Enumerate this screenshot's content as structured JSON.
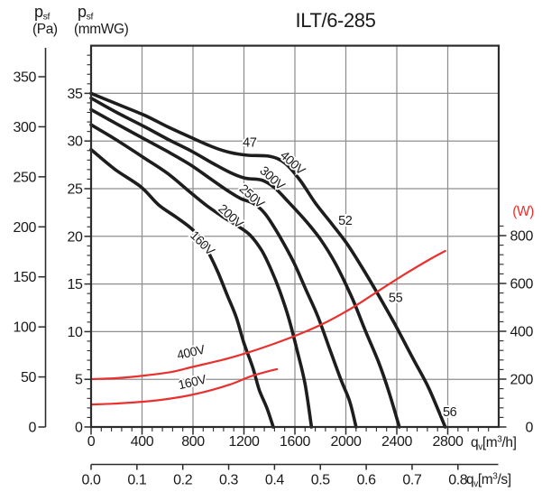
{
  "title": "ILT/6-285",
  "labels": {
    "p_main": "p",
    "p_sub": "sf",
    "pa_unit": "(Pa)",
    "mmwg_unit": "(mmWG)",
    "watt_unit": "(W)",
    "q_main": "q",
    "q_sub": "v",
    "bracket_m": "[m",
    "sup3": "3",
    "per_h": "/h]",
    "per_s": "/s]"
  },
  "colors": {
    "curve_black": "#1d1d1d",
    "curve_red": "#e8312e",
    "annotation_blue": "#5b7ec9",
    "grid": "#8f8f8f",
    "border": "#2c2c2c",
    "tick": "#2c2c2c",
    "text": "#1a1a1a"
  },
  "chart_data": {
    "type": "line",
    "title": "ILT/6-285",
    "x_axis_h": {
      "unit": "m3/h",
      "ticks": [
        0,
        400,
        800,
        1200,
        1600,
        2000,
        2400,
        2800
      ],
      "minor_step": 80,
      "max": 3200
    },
    "x_axis_s": {
      "unit": "m3/s",
      "ticks": [
        "0.0",
        "0.1",
        "0.2",
        "0.3",
        "0.4",
        "0.5",
        "0.6",
        "0.7",
        "0.8"
      ]
    },
    "y_axis_pa": {
      "unit": "Pa",
      "ticks": [
        350,
        300,
        250,
        200,
        150,
        100,
        50,
        0
      ],
      "max": 350
    },
    "y_axis_mmwg": {
      "unit": "mmWG",
      "ticks": [
        35,
        30,
        25,
        20,
        15,
        10,
        5,
        0
      ],
      "minor_step": 1,
      "max": 40
    },
    "y_axis_watt": {
      "unit": "W",
      "ticks": [
        800,
        600,
        400,
        200,
        0
      ],
      "minor_step": 40,
      "max": 840
    },
    "series": [
      {
        "name": "pressure-400V",
        "label": "400V",
        "color": "black",
        "y_axis": "mmWG",
        "label_at": {
          "q": 1560,
          "y": 27.4,
          "rot": 42
        },
        "points": [
          [
            0,
            35
          ],
          [
            200,
            33.9
          ],
          [
            420,
            32.7
          ],
          [
            600,
            31.5
          ],
          [
            780,
            30.4
          ],
          [
            950,
            29.4
          ],
          [
            1090,
            28.8
          ],
          [
            1230,
            28.5
          ],
          [
            1400,
            28.4
          ],
          [
            1520,
            27.7
          ],
          [
            1640,
            25.9
          ],
          [
            1760,
            23.5
          ],
          [
            1890,
            21.3
          ],
          [
            2010,
            19.2
          ],
          [
            2120,
            16.9
          ],
          [
            2240,
            14.2
          ],
          [
            2380,
            10.9
          ],
          [
            2530,
            7.1
          ],
          [
            2650,
            4.1
          ],
          [
            2780,
            0
          ]
        ]
      },
      {
        "name": "pressure-300V",
        "label": "300V",
        "color": "black",
        "y_axis": "mmWG",
        "label_at": {
          "q": 1400,
          "y": 25.8,
          "rot": 42
        },
        "points": [
          [
            0,
            34.5
          ],
          [
            200,
            33
          ],
          [
            420,
            31.5
          ],
          [
            600,
            30.2
          ],
          [
            780,
            29
          ],
          [
            950,
            27.7
          ],
          [
            1090,
            26.7
          ],
          [
            1210,
            26.1
          ],
          [
            1340,
            25.9
          ],
          [
            1440,
            25.1
          ],
          [
            1550,
            23.6
          ],
          [
            1680,
            21.7
          ],
          [
            1800,
            19.7
          ],
          [
            1920,
            17.1
          ],
          [
            2050,
            13.5
          ],
          [
            2150,
            10.2
          ],
          [
            2260,
            6.7
          ],
          [
            2340,
            3.6
          ],
          [
            2420,
            0
          ]
        ]
      },
      {
        "name": "pressure-250V",
        "label": "250V",
        "color": "black",
        "y_axis": "mmWG",
        "label_at": {
          "q": 1240,
          "y": 23.9,
          "rot": 42
        },
        "points": [
          [
            0,
            33.3
          ],
          [
            200,
            31.8
          ],
          [
            420,
            30.2
          ],
          [
            600,
            28.9
          ],
          [
            780,
            27.5
          ],
          [
            930,
            26.1
          ],
          [
            1060,
            24.9
          ],
          [
            1170,
            24
          ],
          [
            1280,
            23.4
          ],
          [
            1370,
            22.3
          ],
          [
            1480,
            20
          ],
          [
            1590,
            17.3
          ],
          [
            1690,
            14.3
          ],
          [
            1780,
            11.6
          ],
          [
            1870,
            8.3
          ],
          [
            1960,
            5
          ],
          [
            2030,
            2.7
          ],
          [
            2080,
            0
          ]
        ]
      },
      {
        "name": "pressure-200V",
        "label": "200V",
        "color": "black",
        "y_axis": "mmWG",
        "label_at": {
          "q": 1075,
          "y": 21.8,
          "rot": 42
        },
        "points": [
          [
            0,
            31.7
          ],
          [
            200,
            30.1
          ],
          [
            420,
            28.2
          ],
          [
            600,
            26.6
          ],
          [
            780,
            24.6
          ],
          [
            910,
            23.2
          ],
          [
            1040,
            22
          ],
          [
            1150,
            21.1
          ],
          [
            1250,
            20.1
          ],
          [
            1340,
            18.5
          ],
          [
            1410,
            16.6
          ],
          [
            1480,
            14.3
          ],
          [
            1550,
            11.5
          ],
          [
            1620,
            7.9
          ],
          [
            1680,
            4.5
          ],
          [
            1730,
            0
          ]
        ]
      },
      {
        "name": "pressure-160V",
        "label": "160V",
        "color": "black",
        "y_axis": "mmWG",
        "label_at": {
          "q": 850,
          "y": 19.0,
          "rot": 45
        },
        "points": [
          [
            0,
            29.1
          ],
          [
            190,
            27
          ],
          [
            390,
            25.2
          ],
          [
            530,
            23.3
          ],
          [
            670,
            22
          ],
          [
            780,
            20.9
          ],
          [
            860,
            19.8
          ],
          [
            930,
            18.1
          ],
          [
            1000,
            16.1
          ],
          [
            1070,
            13.8
          ],
          [
            1140,
            11.5
          ],
          [
            1200,
            8.8
          ],
          [
            1270,
            6.2
          ],
          [
            1320,
            3.9
          ],
          [
            1380,
            2
          ],
          [
            1430,
            0
          ]
        ]
      },
      {
        "name": "power-400V",
        "label": "400V",
        "color": "red",
        "y_axis": "W",
        "label_at": {
          "q": 790,
          "y": 295,
          "rot": -13
        },
        "points": [
          [
            0,
            200
          ],
          [
            200,
            204
          ],
          [
            420,
            215
          ],
          [
            630,
            230
          ],
          [
            810,
            253
          ],
          [
            1020,
            279
          ],
          [
            1200,
            306
          ],
          [
            1410,
            343
          ],
          [
            1620,
            385
          ],
          [
            1830,
            434
          ],
          [
            2050,
            498
          ],
          [
            2260,
            570
          ],
          [
            2470,
            641
          ],
          [
            2650,
            698
          ],
          [
            2780,
            736
          ]
        ]
      },
      {
        "name": "power-160V",
        "label": "160V",
        "color": "red",
        "y_axis": "W",
        "label_at": {
          "q": 800,
          "y": 170,
          "rot": -13
        },
        "points": [
          [
            0,
            94
          ],
          [
            200,
            98
          ],
          [
            420,
            106
          ],
          [
            600,
            117
          ],
          [
            770,
            132
          ],
          [
            950,
            155
          ],
          [
            1110,
            181
          ],
          [
            1250,
            211
          ],
          [
            1370,
            230
          ],
          [
            1460,
            242
          ]
        ]
      }
    ],
    "annotations": [
      {
        "text": "47",
        "q": 1245,
        "mmwg": 29.9
      },
      {
        "text": "52",
        "q": 1995,
        "mmwg": 21.7
      },
      {
        "text": "55",
        "q": 2390,
        "mmwg": 13.6
      },
      {
        "text": "56",
        "q": 2815,
        "mmwg": 1.6
      }
    ]
  }
}
